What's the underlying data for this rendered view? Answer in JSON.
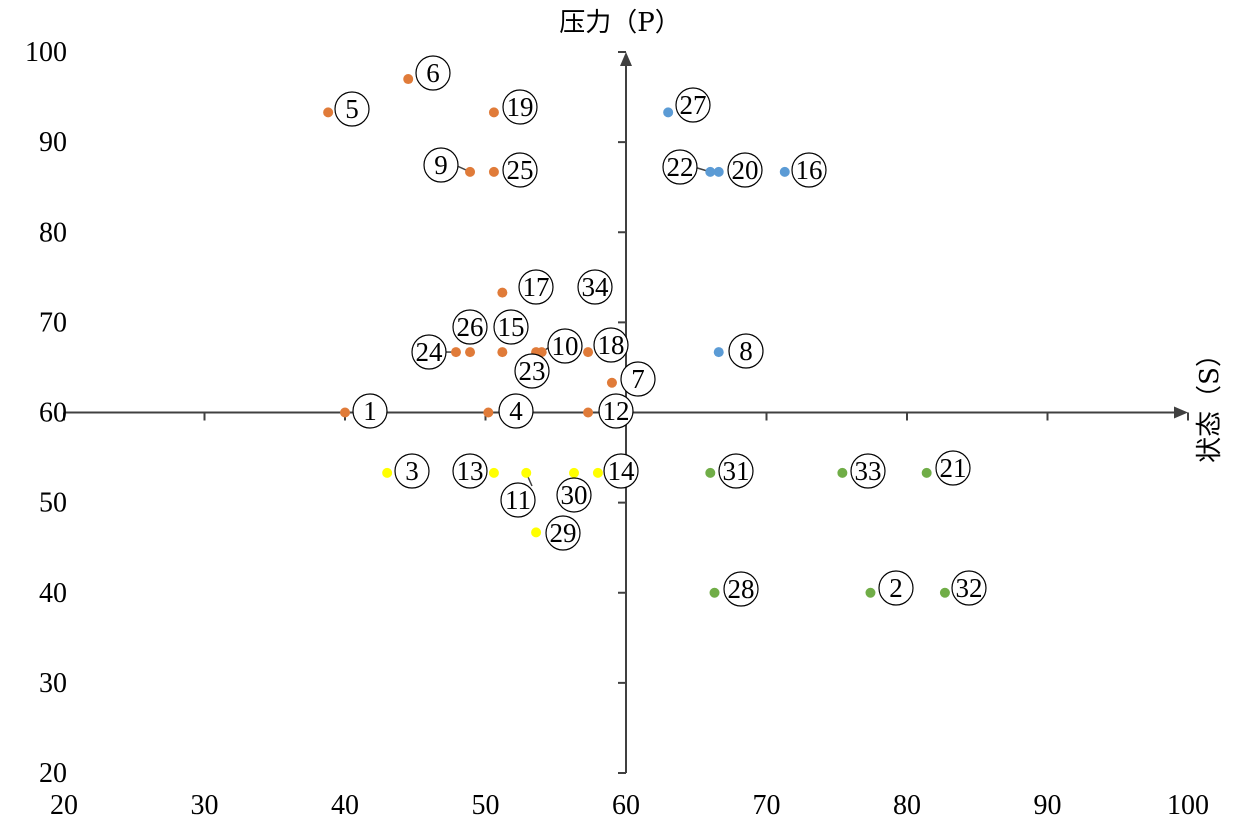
{
  "chart_data": {
    "type": "scatter",
    "xlabel": "状态（S）",
    "ylabel": "压力（P）",
    "xlim": [
      20,
      100
    ],
    "ylim": [
      20,
      100
    ],
    "x_ticks": [
      20,
      30,
      40,
      50,
      60,
      70,
      80,
      90,
      100
    ],
    "y_ticks": [
      20,
      30,
      40,
      50,
      60,
      70,
      80,
      90,
      100
    ],
    "axis_cross": {
      "x": 60,
      "y": 60
    },
    "grid": false,
    "legend": "none",
    "colors": {
      "orange": "#E07B39",
      "blue": "#5B9BD5",
      "yellow": "#FFFF00",
      "green": "#70AD47"
    },
    "points": [
      {
        "label": "1",
        "x": 40.0,
        "y": 60.0,
        "color": "orange"
      },
      {
        "label": "4",
        "x": 50.2,
        "y": 60.0,
        "color": "orange"
      },
      {
        "label": "5",
        "x": 38.8,
        "y": 93.3,
        "color": "orange"
      },
      {
        "label": "6",
        "x": 44.5,
        "y": 97.0,
        "color": "orange"
      },
      {
        "label": "7",
        "x": 59.0,
        "y": 63.3,
        "color": "orange"
      },
      {
        "label": "9",
        "x": 48.9,
        "y": 86.7,
        "color": "orange"
      },
      {
        "label": "10",
        "x": 54.0,
        "y": 66.7,
        "color": "orange"
      },
      {
        "label": "12",
        "x": 57.3,
        "y": 60.0,
        "color": "orange"
      },
      {
        "label": "15",
        "x": 51.2,
        "y": 66.7,
        "color": "orange"
      },
      {
        "label": "17",
        "x": 51.2,
        "y": 73.3,
        "color": "orange"
      },
      {
        "label": "18",
        "x": 57.3,
        "y": 66.7,
        "color": "orange"
      },
      {
        "label": "19",
        "x": 50.6,
        "y": 93.3,
        "color": "orange"
      },
      {
        "label": "23",
        "x": 53.6,
        "y": 66.7,
        "color": "orange"
      },
      {
        "label": "24",
        "x": 47.9,
        "y": 66.7,
        "color": "orange"
      },
      {
        "label": "25",
        "x": 50.6,
        "y": 86.7,
        "color": "orange"
      },
      {
        "label": "26",
        "x": 48.9,
        "y": 66.7,
        "color": "orange"
      },
      {
        "label": "8",
        "x": 66.6,
        "y": 66.7,
        "color": "blue"
      },
      {
        "label": "16",
        "x": 71.3,
        "y": 86.7,
        "color": "blue"
      },
      {
        "label": "20",
        "x": 66.6,
        "y": 86.7,
        "color": "blue"
      },
      {
        "label": "22",
        "x": 66.0,
        "y": 86.7,
        "color": "blue"
      },
      {
        "label": "27",
        "x": 63.0,
        "y": 93.3,
        "color": "blue"
      },
      {
        "label": "3",
        "x": 43.0,
        "y": 53.3,
        "color": "yellow"
      },
      {
        "label": "11",
        "x": 52.9,
        "y": 53.3,
        "color": "yellow"
      },
      {
        "label": "13",
        "x": 50.6,
        "y": 53.3,
        "color": "yellow"
      },
      {
        "label": "14",
        "x": 58.0,
        "y": 53.3,
        "color": "yellow"
      },
      {
        "label": "29",
        "x": 53.6,
        "y": 46.7,
        "color": "yellow"
      },
      {
        "label": "30",
        "x": 56.3,
        "y": 53.3,
        "color": "yellow"
      },
      {
        "label": "2",
        "x": 77.4,
        "y": 40.0,
        "color": "green"
      },
      {
        "label": "21",
        "x": 81.4,
        "y": 53.3,
        "color": "green"
      },
      {
        "label": "28",
        "x": 66.3,
        "y": 40.0,
        "color": "green"
      },
      {
        "label": "31",
        "x": 66.0,
        "y": 53.3,
        "color": "green"
      },
      {
        "label": "32",
        "x": 82.7,
        "y": 40.0,
        "color": "green"
      },
      {
        "label": "33",
        "x": 75.4,
        "y": 53.3,
        "color": "green"
      },
      {
        "label": "34",
        "x": 57.9,
        "y": 73.3,
        "color": "none"
      }
    ]
  }
}
